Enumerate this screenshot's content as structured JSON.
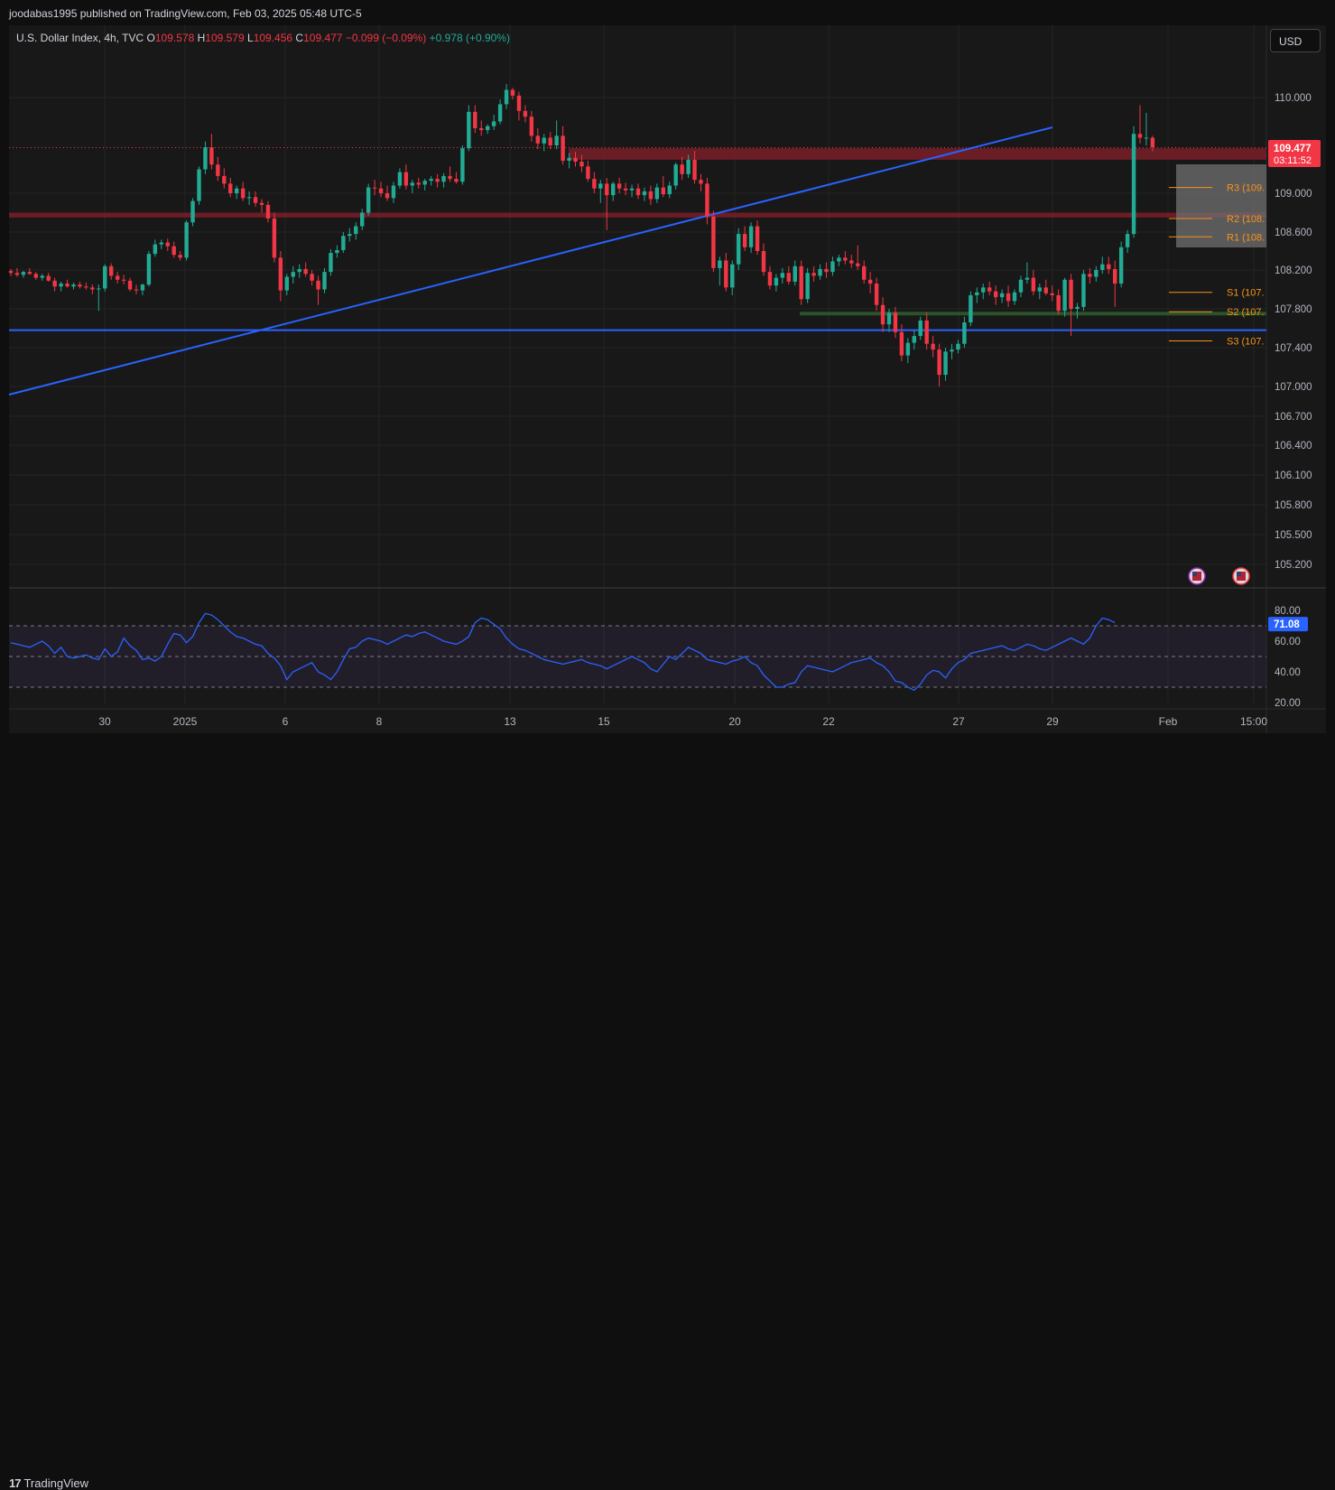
{
  "header": {
    "published": "joodabas1995 published on TradingView.com, Feb 03, 2025 05:48 UTC-5"
  },
  "legend": {
    "symbol": "U.S. Dollar Index, 4h, TVC",
    "o_label": "O",
    "o_value": "109.578",
    "h_label": "H",
    "h_value": "109.579",
    "l_label": "L",
    "l_value": "109.456",
    "c_label": "C",
    "c_value": "109.477",
    "change": "−0.099 (−0.09%)",
    "volume_change": "+0.978 (+0.90%)"
  },
  "currency_button": "USD",
  "footer": {
    "brand": "TradingView",
    "logo_mark": "17"
  },
  "colors": {
    "background": "#181818",
    "up": "#22ab94",
    "down": "#f23645",
    "trendline": "#2962ff",
    "resistance_zone": "#7a1f29",
    "support_zone": "#2e5e2b",
    "pivot": "#f7931a",
    "rsi": "#2962ff"
  },
  "chart_data": {
    "type": "candlestick",
    "symbol": "U.S. Dollar Index",
    "interval": "4h",
    "source": "TVC",
    "last_price": "109.477",
    "countdown": "03:11:52",
    "y_ticks": [
      "110.000",
      "109.000",
      "108.600",
      "108.200",
      "107.800",
      "107.400",
      "107.000",
      "106.700",
      "106.400",
      "106.100",
      "105.800",
      "105.500",
      "105.200"
    ],
    "x_ticks": [
      "30",
      "2025",
      "6",
      "8",
      "13",
      "15",
      "20",
      "22",
      "27",
      "29",
      "Feb",
      "15:00"
    ],
    "pivots": [
      {
        "label": "R3 (109.",
        "value": 109.06
      },
      {
        "label": "R2 (108.",
        "value": 108.74
      },
      {
        "label": "R1 (108.",
        "value": 108.55
      },
      {
        "label": "S1 (107.",
        "value": 107.97
      },
      {
        "label": "S2 (107.",
        "value": 107.77
      },
      {
        "label": "S3 (107.",
        "value": 107.47
      }
    ],
    "zones": [
      {
        "name": "resistance-upper",
        "from": 109.35,
        "to": 109.47
      },
      {
        "name": "resistance-lower",
        "from": 108.75,
        "to": 108.8
      },
      {
        "name": "support",
        "from": 107.74,
        "to": 107.77
      }
    ],
    "horizontal_line": 107.58,
    "rsi": {
      "value": "71.08",
      "levels": [
        70,
        50,
        30
      ],
      "ticks": [
        "80.00",
        "60.00",
        "40.00",
        "20.00"
      ],
      "points": [
        59,
        58,
        57,
        56,
        58,
        60,
        57,
        52,
        56,
        50,
        49,
        50,
        51,
        49,
        48,
        55,
        50,
        53,
        62,
        57,
        54,
        48,
        49,
        47,
        50,
        58,
        65,
        64,
        59,
        63,
        72,
        78,
        77,
        74,
        70,
        66,
        63,
        62,
        60,
        58,
        57,
        52,
        49,
        44,
        35,
        40,
        42,
        44,
        46,
        40,
        38,
        35,
        40,
        48,
        55,
        56,
        60,
        62,
        61,
        60,
        58,
        60,
        62,
        64,
        63,
        65,
        66,
        64,
        62,
        60,
        59,
        58,
        60,
        63,
        72,
        75,
        74,
        71,
        68,
        62,
        58,
        55,
        54,
        52,
        50,
        48,
        47,
        46,
        45,
        46,
        47,
        48,
        46,
        45,
        44,
        42,
        44,
        46,
        48,
        50,
        48,
        46,
        42,
        40,
        45,
        50,
        48,
        52,
        56,
        54,
        52,
        48,
        47,
        46,
        45,
        47,
        48,
        50,
        46,
        44,
        38,
        34,
        30,
        30,
        32,
        33,
        40,
        44,
        43,
        42,
        41,
        40,
        42,
        44,
        46,
        47,
        48,
        49,
        46,
        44,
        40,
        34,
        33,
        30,
        28,
        32,
        38,
        41,
        40,
        36,
        42,
        46,
        48,
        52,
        53,
        54,
        55,
        56,
        57,
        55,
        54,
        56,
        58,
        57,
        55,
        54,
        56,
        58,
        60,
        62,
        60,
        58,
        62,
        70,
        75,
        74,
        72
      ]
    },
    "candles": [
      [
        108.19,
        108.21,
        108.14,
        108.17
      ],
      [
        108.17,
        108.22,
        108.13,
        108.15
      ],
      [
        108.15,
        108.19,
        108.12,
        108.18
      ],
      [
        108.18,
        108.22,
        108.15,
        108.16
      ],
      [
        108.16,
        108.18,
        108.1,
        108.12
      ],
      [
        108.12,
        108.16,
        108.09,
        108.14
      ],
      [
        108.14,
        108.17,
        108.08,
        108.09
      ],
      [
        108.09,
        108.12,
        107.98,
        108.03
      ],
      [
        108.03,
        108.08,
        107.98,
        108.06
      ],
      [
        108.06,
        108.1,
        108.02,
        108.03
      ],
      [
        108.03,
        108.07,
        108.0,
        108.05
      ],
      [
        108.05,
        108.08,
        108.01,
        108.03
      ],
      [
        108.03,
        108.07,
        108.0,
        108.02
      ],
      [
        108.02,
        108.05,
        107.95,
        108.0
      ],
      [
        108.0,
        108.05,
        107.78,
        108.01
      ],
      [
        108.01,
        108.26,
        107.98,
        108.24
      ],
      [
        108.24,
        108.27,
        108.1,
        108.14
      ],
      [
        108.14,
        108.18,
        108.06,
        108.1
      ],
      [
        108.1,
        108.15,
        108.05,
        108.09
      ],
      [
        108.09,
        108.12,
        107.98,
        108.0
      ],
      [
        108.0,
        108.05,
        107.95,
        107.99
      ],
      [
        107.99,
        108.06,
        107.94,
        108.05
      ],
      [
        108.05,
        108.4,
        108.03,
        108.37
      ],
      [
        108.37,
        108.52,
        108.34,
        108.47
      ],
      [
        108.47,
        108.52,
        108.42,
        108.49
      ],
      [
        108.49,
        108.53,
        108.4,
        108.45
      ],
      [
        108.45,
        108.5,
        108.33,
        108.36
      ],
      [
        108.36,
        108.4,
        108.3,
        108.33
      ],
      [
        108.33,
        108.72,
        108.3,
        108.7
      ],
      [
        108.7,
        108.95,
        108.66,
        108.92
      ],
      [
        108.92,
        109.28,
        108.88,
        109.25
      ],
      [
        109.25,
        109.54,
        109.2,
        109.48
      ],
      [
        109.48,
        109.62,
        109.25,
        109.3
      ],
      [
        109.3,
        109.38,
        109.13,
        109.18
      ],
      [
        109.18,
        109.26,
        109.05,
        109.1
      ],
      [
        109.1,
        109.16,
        108.96,
        109.0
      ],
      [
        109.0,
        109.08,
        108.94,
        109.05
      ],
      [
        109.05,
        109.12,
        108.92,
        108.95
      ],
      [
        108.95,
        109.02,
        108.88,
        108.96
      ],
      [
        108.96,
        109.02,
        108.86,
        108.9
      ],
      [
        108.9,
        108.94,
        108.8,
        108.88
      ],
      [
        108.88,
        108.92,
        108.7,
        108.74
      ],
      [
        108.74,
        108.8,
        108.28,
        108.33
      ],
      [
        108.33,
        108.4,
        107.88,
        107.99
      ],
      [
        107.99,
        108.16,
        107.94,
        108.13
      ],
      [
        108.13,
        108.24,
        108.06,
        108.18
      ],
      [
        108.18,
        108.26,
        108.12,
        108.21
      ],
      [
        108.21,
        108.28,
        108.13,
        108.16
      ],
      [
        108.16,
        108.2,
        108.04,
        108.09
      ],
      [
        108.09,
        108.14,
        107.84,
        108.0
      ],
      [
        108.0,
        108.22,
        107.96,
        108.18
      ],
      [
        108.18,
        108.42,
        108.14,
        108.38
      ],
      [
        108.38,
        108.46,
        108.33,
        108.41
      ],
      [
        108.41,
        108.6,
        108.38,
        108.56
      ],
      [
        108.56,
        108.64,
        108.5,
        108.58
      ],
      [
        108.58,
        108.7,
        108.52,
        108.66
      ],
      [
        108.66,
        108.84,
        108.62,
        108.8
      ],
      [
        108.8,
        109.1,
        108.77,
        109.06
      ],
      [
        109.06,
        109.14,
        108.98,
        109.05
      ],
      [
        109.05,
        109.12,
        108.96,
        109.0
      ],
      [
        109.0,
        109.08,
        108.92,
        108.95
      ],
      [
        108.95,
        109.12,
        108.9,
        109.08
      ],
      [
        109.08,
        109.26,
        109.05,
        109.22
      ],
      [
        109.22,
        109.3,
        109.04,
        109.08
      ],
      [
        109.08,
        109.14,
        109.0,
        109.11
      ],
      [
        109.11,
        109.16,
        109.05,
        109.09
      ],
      [
        109.09,
        109.15,
        109.03,
        109.13
      ],
      [
        109.13,
        109.18,
        109.08,
        109.15
      ],
      [
        109.15,
        109.2,
        109.06,
        109.12
      ],
      [
        109.12,
        109.21,
        109.06,
        109.18
      ],
      [
        109.18,
        109.28,
        109.12,
        109.15
      ],
      [
        109.15,
        109.22,
        109.1,
        109.12
      ],
      [
        109.12,
        109.5,
        109.09,
        109.47
      ],
      [
        109.47,
        109.92,
        109.44,
        109.85
      ],
      [
        109.85,
        109.92,
        109.63,
        109.68
      ],
      [
        109.68,
        109.76,
        109.6,
        109.66
      ],
      [
        109.66,
        109.72,
        109.62,
        109.7
      ],
      [
        109.7,
        109.82,
        109.66,
        109.75
      ],
      [
        109.75,
        109.98,
        109.72,
        109.93
      ],
      [
        109.93,
        110.14,
        109.88,
        110.08
      ],
      [
        110.08,
        110.1,
        109.98,
        110.02
      ],
      [
        110.02,
        110.06,
        109.76,
        109.86
      ],
      [
        109.86,
        109.92,
        109.74,
        109.8
      ],
      [
        109.8,
        109.86,
        109.54,
        109.6
      ],
      [
        109.6,
        109.68,
        109.46,
        109.52
      ],
      [
        109.52,
        109.62,
        109.44,
        109.58
      ],
      [
        109.58,
        109.64,
        109.46,
        109.5
      ],
      [
        109.5,
        109.76,
        109.46,
        109.6
      ],
      [
        109.6,
        109.7,
        109.3,
        109.34
      ],
      [
        109.34,
        109.42,
        109.26,
        109.37
      ],
      [
        109.37,
        109.43,
        109.28,
        109.33
      ],
      [
        109.33,
        109.4,
        109.22,
        109.28
      ],
      [
        109.28,
        109.34,
        109.12,
        109.15
      ],
      [
        109.15,
        109.22,
        109.0,
        109.05
      ],
      [
        109.05,
        109.14,
        108.9,
        109.1
      ],
      [
        109.1,
        109.16,
        108.62,
        108.98
      ],
      [
        108.98,
        109.12,
        108.92,
        109.1
      ],
      [
        109.1,
        109.16,
        109.0,
        109.05
      ],
      [
        109.05,
        109.11,
        108.98,
        109.03
      ],
      [
        109.03,
        109.09,
        108.96,
        109.05
      ],
      [
        109.05,
        109.1,
        108.94,
        108.98
      ],
      [
        108.98,
        109.06,
        108.92,
        109.02
      ],
      [
        109.02,
        109.08,
        108.88,
        108.94
      ],
      [
        108.94,
        109.1,
        108.9,
        109.06
      ],
      [
        109.06,
        109.18,
        108.96,
        108.99
      ],
      [
        108.99,
        109.12,
        108.95,
        109.08
      ],
      [
        109.08,
        109.32,
        109.04,
        109.3
      ],
      [
        109.3,
        109.38,
        109.14,
        109.2
      ],
      [
        109.2,
        109.4,
        109.16,
        109.35
      ],
      [
        109.35,
        109.44,
        109.1,
        109.14
      ],
      [
        109.14,
        109.2,
        109.02,
        109.1
      ],
      [
        109.1,
        109.16,
        108.68,
        108.76
      ],
      [
        108.76,
        108.82,
        108.18,
        108.22
      ],
      [
        108.22,
        108.34,
        108.04,
        108.3
      ],
      [
        108.3,
        108.38,
        107.98,
        108.02
      ],
      [
        108.02,
        108.3,
        107.94,
        108.26
      ],
      [
        108.26,
        108.64,
        108.2,
        108.58
      ],
      [
        108.58,
        108.66,
        108.4,
        108.44
      ],
      [
        108.44,
        108.7,
        108.38,
        108.66
      ],
      [
        108.66,
        108.72,
        108.36,
        108.4
      ],
      [
        108.4,
        108.48,
        108.14,
        108.18
      ],
      [
        108.18,
        108.24,
        108.0,
        108.04
      ],
      [
        108.04,
        108.16,
        107.98,
        108.12
      ],
      [
        108.12,
        108.22,
        108.06,
        108.17
      ],
      [
        108.17,
        108.24,
        108.05,
        108.08
      ],
      [
        108.08,
        108.3,
        108.04,
        108.24
      ],
      [
        108.24,
        108.3,
        107.84,
        107.9
      ],
      [
        107.9,
        108.22,
        107.86,
        108.17
      ],
      [
        108.17,
        108.24,
        108.08,
        108.14
      ],
      [
        108.14,
        108.26,
        108.1,
        108.21
      ],
      [
        108.21,
        108.28,
        108.12,
        108.18
      ],
      [
        108.18,
        108.34,
        108.14,
        108.29
      ],
      [
        108.29,
        108.36,
        108.24,
        108.33
      ],
      [
        108.33,
        108.4,
        108.26,
        108.3
      ],
      [
        108.3,
        108.36,
        108.22,
        108.27
      ],
      [
        108.27,
        108.46,
        108.2,
        108.24
      ],
      [
        108.24,
        108.3,
        108.06,
        108.1
      ],
      [
        108.1,
        108.18,
        107.96,
        108.06
      ],
      [
        108.06,
        108.12,
        107.78,
        107.84
      ],
      [
        107.84,
        107.92,
        107.56,
        107.64
      ],
      [
        107.64,
        107.8,
        107.56,
        107.76
      ],
      [
        107.76,
        107.82,
        107.5,
        107.56
      ],
      [
        107.56,
        107.64,
        107.26,
        107.32
      ],
      [
        107.32,
        107.5,
        107.24,
        107.45
      ],
      [
        107.45,
        107.58,
        107.38,
        107.52
      ],
      [
        107.52,
        107.72,
        107.48,
        107.68
      ],
      [
        107.68,
        107.76,
        107.38,
        107.44
      ],
      [
        107.44,
        107.52,
        107.3,
        107.38
      ],
      [
        107.38,
        107.44,
        107.0,
        107.12
      ],
      [
        107.12,
        107.4,
        107.06,
        107.36
      ],
      [
        107.36,
        107.44,
        107.28,
        107.38
      ],
      [
        107.38,
        107.48,
        107.34,
        107.44
      ],
      [
        107.44,
        107.72,
        107.4,
        107.66
      ],
      [
        107.66,
        107.98,
        107.62,
        107.94
      ],
      [
        107.94,
        108.02,
        107.86,
        107.97
      ],
      [
        107.97,
        108.06,
        107.9,
        108.02
      ],
      [
        108.02,
        108.08,
        107.94,
        107.98
      ],
      [
        107.98,
        108.04,
        107.84,
        107.92
      ],
      [
        107.92,
        108.0,
        107.86,
        107.96
      ],
      [
        107.96,
        108.04,
        107.82,
        107.88
      ],
      [
        107.88,
        108.0,
        107.84,
        107.97
      ],
      [
        107.97,
        108.14,
        107.92,
        108.1
      ],
      [
        108.1,
        108.28,
        108.06,
        108.12
      ],
      [
        108.12,
        108.2,
        107.94,
        107.98
      ],
      [
        107.98,
        108.06,
        107.9,
        108.02
      ],
      [
        108.02,
        108.1,
        107.94,
        107.96
      ],
      [
        107.96,
        108.04,
        107.88,
        107.94
      ],
      [
        107.94,
        108.0,
        107.74,
        107.78
      ],
      [
        107.78,
        108.12,
        107.72,
        108.1
      ],
      [
        108.1,
        108.16,
        107.52,
        107.8
      ],
      [
        107.8,
        107.86,
        107.7,
        107.82
      ],
      [
        107.82,
        108.2,
        107.78,
        108.16
      ],
      [
        108.16,
        108.22,
        108.06,
        108.13
      ],
      [
        108.13,
        108.24,
        108.08,
        108.2
      ],
      [
        108.2,
        108.34,
        108.16,
        108.26
      ],
      [
        108.26,
        108.34,
        108.16,
        108.21
      ],
      [
        108.21,
        108.3,
        107.82,
        108.06
      ],
      [
        108.06,
        108.5,
        108.02,
        108.44
      ],
      [
        108.44,
        108.62,
        108.38,
        108.58
      ],
      [
        108.58,
        109.7,
        108.54,
        109.62
      ],
      [
        109.62,
        109.92,
        109.52,
        109.58
      ],
      [
        109.58,
        109.84,
        109.5,
        109.58
      ],
      [
        109.58,
        109.6,
        109.44,
        109.48
      ]
    ],
    "trendline": {
      "from": {
        "index": 0,
        "value": 106.95
      },
      "to": {
        "index": 145,
        "value": 109.72
      }
    }
  }
}
